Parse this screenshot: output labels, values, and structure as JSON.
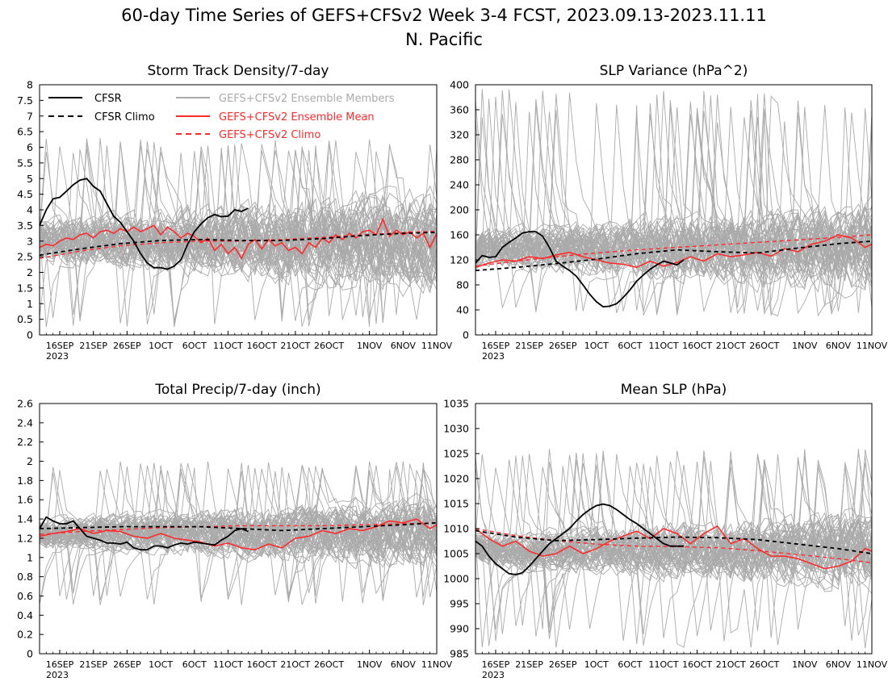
{
  "figure": {
    "title_line1": "60-day Time Series of GEFS+CFSv2 Week 3-4 FCST, 2023.09.13-2023.11.11",
    "title_line2": "N. Pacific"
  },
  "legend": {
    "cfsr": "CFSR",
    "cfsr_climo": "CFSR Climo",
    "members": "GEFS+CFSv2 Ensemble Members",
    "ens_mean": "GEFS+CFSv2 Ensemble Mean",
    "ens_climo": "GEFS+CFSv2 Climo"
  },
  "colors": {
    "cfsr": "#000000",
    "members": "#aaaaaa",
    "ens_mean": "#ff2a2a",
    "ens_climo": "#ff2a2a"
  },
  "x_axis": {
    "ticks": [
      {
        "day": 3,
        "label": "16SEP"
      },
      {
        "day": 8,
        "label": "21SEP"
      },
      {
        "day": 13,
        "label": "26SEP"
      },
      {
        "day": 18,
        "label": "1OCT"
      },
      {
        "day": 23,
        "label": "6OCT"
      },
      {
        "day": 28,
        "label": "11OCT"
      },
      {
        "day": 33,
        "label": "16OCT"
      },
      {
        "day": 38,
        "label": "21OCT"
      },
      {
        "day": 43,
        "label": "26OCT"
      },
      {
        "day": 49,
        "label": "1NOV"
      },
      {
        "day": 54,
        "label": "6NOV"
      },
      {
        "day": 59,
        "label": "11NOV"
      }
    ],
    "year_label": "2023",
    "range_days": [
      0,
      59
    ],
    "note": "x values are days after 2023-09-13"
  },
  "chart_data": [
    {
      "type": "line",
      "title": "Storm Track Density/7-day",
      "ylim": [
        0,
        8
      ],
      "yticks": [
        "0",
        "0.5",
        "1",
        "1.5",
        "2",
        "2.5",
        "3",
        "3.5",
        "4",
        "4.5",
        "5",
        "5.5",
        "6",
        "6.5",
        "7",
        "7.5",
        "8"
      ],
      "ytick_values": [
        0,
        0.5,
        1,
        1.5,
        2,
        2.5,
        3,
        3.5,
        4,
        4.5,
        5,
        5.5,
        6,
        6.5,
        7,
        7.5,
        8
      ],
      "members_band": {
        "low": 1.4,
        "high": 4.6,
        "min": 0.2,
        "max": 6.3
      },
      "series": [
        {
          "key": "cfsr",
          "x": [
            0,
            1,
            2,
            3,
            4,
            5,
            6,
            7,
            8,
            9,
            10,
            11,
            12,
            13,
            14,
            15,
            16,
            17,
            18,
            19,
            20,
            21,
            22,
            23,
            24,
            25,
            26,
            27,
            28,
            29,
            30,
            31
          ],
          "values": [
            3.5,
            4.0,
            4.35,
            4.4,
            4.6,
            4.8,
            4.95,
            5.0,
            4.75,
            4.6,
            4.2,
            3.8,
            3.6,
            3.3,
            3.0,
            2.6,
            2.3,
            2.15,
            2.15,
            2.1,
            2.2,
            2.4,
            2.9,
            3.3,
            3.55,
            3.75,
            3.85,
            3.78,
            3.8,
            4.0,
            3.95,
            4.05
          ]
        },
        {
          "key": "cfsr_climo",
          "x": [
            0,
            6,
            12,
            18,
            24,
            30,
            36,
            42,
            48,
            54,
            59
          ],
          "values": [
            2.55,
            2.75,
            2.92,
            3.02,
            3.05,
            3.02,
            3.02,
            3.08,
            3.18,
            3.25,
            3.28
          ]
        },
        {
          "key": "ens_mean",
          "x": [
            0,
            1,
            2,
            3,
            4,
            5,
            6,
            7,
            8,
            9,
            10,
            11,
            12,
            13,
            14,
            15,
            16,
            17,
            18,
            19,
            20,
            21,
            22,
            23,
            24,
            25,
            26,
            27,
            28,
            29,
            30,
            31,
            32,
            33,
            34,
            35,
            36,
            37,
            38,
            39,
            40,
            41,
            42,
            43,
            44,
            45,
            46,
            47,
            48,
            49,
            50,
            51,
            52,
            53,
            54,
            55,
            56,
            57,
            58,
            59
          ],
          "values": [
            2.8,
            2.9,
            2.85,
            3.0,
            3.1,
            3.05,
            3.2,
            3.25,
            3.1,
            3.3,
            3.35,
            3.25,
            3.4,
            3.3,
            3.45,
            3.3,
            3.4,
            3.5,
            3.2,
            3.45,
            3.3,
            3.1,
            3.25,
            3.15,
            2.95,
            3.1,
            2.7,
            2.9,
            2.6,
            2.8,
            2.45,
            2.9,
            3.05,
            2.75,
            3.05,
            2.85,
            2.95,
            2.7,
            2.8,
            2.6,
            2.95,
            2.8,
            3.1,
            2.95,
            3.2,
            3.05,
            3.25,
            3.1,
            3.3,
            3.35,
            3.2,
            3.7,
            3.15,
            3.35,
            3.2,
            3.3,
            3.1,
            3.25,
            2.8,
            3.25
          ]
        },
        {
          "key": "ens_climo",
          "x": [
            0,
            6,
            12,
            18,
            24,
            30,
            36,
            42,
            48,
            54,
            59
          ],
          "values": [
            2.45,
            2.68,
            2.85,
            2.95,
            3.0,
            3.0,
            3.05,
            3.12,
            3.2,
            3.27,
            3.32
          ]
        }
      ]
    },
    {
      "type": "line",
      "title": "SLP Variance (hPa^2)",
      "ylim": [
        0,
        400
      ],
      "yticks": [
        "0",
        "40",
        "80",
        "120",
        "160",
        "200",
        "240",
        "280",
        "320",
        "360",
        "400"
      ],
      "ytick_values": [
        0,
        40,
        80,
        120,
        160,
        200,
        240,
        280,
        320,
        360,
        400
      ],
      "members_band": {
        "low": 70,
        "high": 210,
        "min": 30,
        "max": 395
      },
      "series": [
        {
          "key": "cfsr",
          "x": [
            0,
            1,
            2,
            3,
            4,
            5,
            6,
            7,
            8,
            9,
            10,
            11,
            12,
            13,
            14,
            15,
            16,
            17,
            18,
            19,
            20,
            21,
            22,
            23,
            24,
            25,
            26,
            27,
            28,
            29,
            30,
            31
          ],
          "values": [
            115,
            127,
            124,
            125,
            140,
            148,
            155,
            163,
            165,
            165,
            158,
            140,
            118,
            110,
            103,
            94,
            80,
            65,
            53,
            45,
            46,
            50,
            60,
            72,
            86,
            96,
            105,
            112,
            118,
            115,
            112,
            120
          ]
        },
        {
          "key": "cfsr_climo",
          "x": [
            0,
            6,
            12,
            18,
            24,
            30,
            36,
            42,
            48,
            54,
            59
          ],
          "values": [
            103,
            108,
            114,
            121,
            130,
            136,
            133,
            131,
            139,
            146,
            150
          ]
        },
        {
          "key": "ens_mean",
          "x": [
            0,
            2,
            4,
            6,
            8,
            10,
            12,
            14,
            16,
            18,
            20,
            22,
            24,
            26,
            28,
            30,
            32,
            34,
            36,
            38,
            40,
            42,
            44,
            46,
            48,
            50,
            52,
            54,
            56,
            58,
            59
          ],
          "values": [
            108,
            115,
            120,
            118,
            125,
            122,
            128,
            132,
            125,
            120,
            115,
            113,
            108,
            118,
            110,
            116,
            125,
            118,
            130,
            125,
            128,
            132,
            126,
            138,
            133,
            145,
            150,
            160,
            155,
            140,
            145
          ]
        },
        {
          "key": "ens_climo",
          "x": [
            0,
            6,
            12,
            18,
            24,
            30,
            36,
            42,
            48,
            54,
            59
          ],
          "values": [
            110,
            118,
            125,
            131,
            136,
            140,
            144,
            148,
            152,
            156,
            160
          ]
        }
      ]
    },
    {
      "type": "line",
      "title": "Total Precip/7-day (inch)",
      "ylim": [
        0,
        2.6
      ],
      "yticks": [
        "0",
        "0.2",
        "0.4",
        "0.6",
        "0.8",
        "1",
        "1.2",
        "1.4",
        "1.6",
        "1.8",
        "2",
        "2.2",
        "2.4",
        "2.6"
      ],
      "ytick_values": [
        0,
        0.2,
        0.4,
        0.6,
        0.8,
        1,
        1.2,
        1.4,
        1.6,
        1.8,
        2,
        2.2,
        2.4,
        2.6
      ],
      "members_band": {
        "low": 0.9,
        "high": 1.6,
        "min": 0.5,
        "max": 2.0
      },
      "series": [
        {
          "key": "cfsr",
          "x": [
            0,
            1,
            2,
            3,
            4,
            5,
            6,
            7,
            8,
            9,
            10,
            11,
            12,
            13,
            14,
            15,
            16,
            17,
            18,
            19,
            20,
            21,
            22,
            23,
            24,
            25,
            26,
            27,
            28,
            29,
            30,
            31
          ],
          "values": [
            1.3,
            1.42,
            1.38,
            1.35,
            1.35,
            1.38,
            1.3,
            1.22,
            1.2,
            1.18,
            1.15,
            1.15,
            1.14,
            1.16,
            1.1,
            1.08,
            1.08,
            1.12,
            1.12,
            1.1,
            1.13,
            1.15,
            1.14,
            1.16,
            1.15,
            1.14,
            1.13,
            1.18,
            1.22,
            1.28,
            1.3,
            1.27
          ]
        },
        {
          "key": "cfsr_climo",
          "x": [
            0,
            6,
            12,
            18,
            24,
            30,
            36,
            42,
            48,
            54,
            59
          ],
          "values": [
            1.3,
            1.31,
            1.32,
            1.32,
            1.32,
            1.3,
            1.28,
            1.3,
            1.32,
            1.34,
            1.36
          ]
        },
        {
          "key": "ens_mean",
          "x": [
            0,
            2,
            4,
            6,
            8,
            10,
            12,
            14,
            16,
            18,
            20,
            22,
            24,
            26,
            28,
            30,
            32,
            34,
            36,
            38,
            40,
            42,
            44,
            46,
            48,
            50,
            52,
            54,
            56,
            58,
            59
          ],
          "values": [
            1.22,
            1.25,
            1.27,
            1.3,
            1.25,
            1.28,
            1.27,
            1.22,
            1.2,
            1.25,
            1.2,
            1.18,
            1.16,
            1.12,
            1.15,
            1.1,
            1.08,
            1.14,
            1.1,
            1.2,
            1.22,
            1.28,
            1.25,
            1.3,
            1.28,
            1.32,
            1.38,
            1.36,
            1.4,
            1.3,
            1.34
          ]
        },
        {
          "key": "ens_climo",
          "x": [
            0,
            6,
            12,
            18,
            24,
            30,
            36,
            42,
            48,
            54,
            59
          ],
          "values": [
            1.24,
            1.27,
            1.29,
            1.31,
            1.32,
            1.33,
            1.33,
            1.33,
            1.34,
            1.35,
            1.36
          ]
        }
      ]
    },
    {
      "type": "line",
      "title": "Mean SLP (hPa)",
      "ylim": [
        985,
        1035
      ],
      "yticks": [
        "985",
        "990",
        "995",
        "1000",
        "1005",
        "1010",
        "1015",
        "1020",
        "1025",
        "1030",
        "1035"
      ],
      "ytick_values": [
        985,
        990,
        995,
        1000,
        1005,
        1010,
        1015,
        1020,
        1025,
        1030,
        1035
      ],
      "members_band": {
        "low": 998,
        "high": 1013,
        "min": 986,
        "max": 1026
      },
      "series": [
        {
          "key": "cfsr",
          "x": [
            0,
            1,
            2,
            3,
            4,
            5,
            6,
            7,
            8,
            9,
            10,
            11,
            12,
            13,
            14,
            15,
            16,
            17,
            18,
            19,
            20,
            21,
            22,
            23,
            24,
            25,
            26,
            27,
            28,
            29,
            30,
            31
          ],
          "values": [
            1007.5,
            1006.5,
            1004.5,
            1003,
            1002,
            1001,
            1000.8,
            1001.2,
            1002.5,
            1004,
            1005.5,
            1007,
            1008,
            1009,
            1010,
            1011.5,
            1012.8,
            1013.8,
            1014.6,
            1014.9,
            1014.6,
            1013.8,
            1012.8,
            1011.8,
            1011,
            1010,
            1009,
            1008,
            1007,
            1006.5,
            1006.5,
            1006.5
          ]
        },
        {
          "key": "cfsr_climo",
          "x": [
            0,
            6,
            12,
            18,
            24,
            30,
            36,
            42,
            48,
            54,
            59
          ],
          "values": [
            1009.6,
            1008.3,
            1007.6,
            1007.8,
            1008.1,
            1008.3,
            1008.2,
            1007.8,
            1006.9,
            1006,
            1005
          ]
        },
        {
          "key": "ens_mean",
          "x": [
            0,
            2,
            4,
            6,
            8,
            10,
            12,
            14,
            16,
            18,
            20,
            22,
            24,
            26,
            28,
            30,
            32,
            34,
            36,
            38,
            40,
            42,
            44,
            46,
            48,
            50,
            52,
            54,
            56,
            58,
            59
          ],
          "values": [
            1010,
            1008,
            1006.5,
            1007.5,
            1005.5,
            1004.5,
            1005,
            1006.5,
            1005,
            1006,
            1007.5,
            1008.5,
            1009.5,
            1008,
            1010,
            1009,
            1007,
            1009,
            1010.5,
            1007,
            1008,
            1006,
            1004.5,
            1004.5,
            1004,
            1003,
            1002,
            1002.5,
            1003.5,
            1006,
            1005.5
          ]
        },
        {
          "key": "ens_climo",
          "x": [
            0,
            6,
            12,
            18,
            24,
            30,
            36,
            42,
            48,
            54,
            59
          ],
          "values": [
            1010,
            1008.6,
            1007.6,
            1006.9,
            1006.5,
            1006.4,
            1006.2,
            1005.6,
            1004.8,
            1004,
            1003.2
          ]
        }
      ]
    }
  ]
}
